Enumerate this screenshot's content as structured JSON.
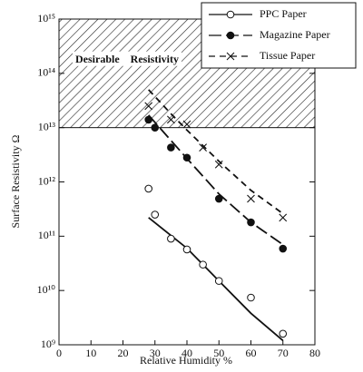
{
  "chart_data": {
    "type": "scatter",
    "x_label": "Relative Humidity  %",
    "y_label": "Surface Resistivity  Ω",
    "xlim": [
      0,
      80
    ],
    "xticks": [
      0,
      10,
      20,
      30,
      40,
      50,
      60,
      70,
      80
    ],
    "ylim": [
      1000000000,
      1000000000000000
    ],
    "yscale": "log",
    "yticks": [
      {
        "value": 1000000000,
        "label": "10⁹"
      },
      {
        "value": 10000000000,
        "label": "10¹⁰"
      },
      {
        "value": 100000000000,
        "label": "10¹¹"
      },
      {
        "value": 1000000000000,
        "label": "10¹²"
      },
      {
        "value": 10000000000000,
        "label": "10¹³"
      },
      {
        "value": 100000000000000,
        "label": "10¹⁴"
      },
      {
        "value": 1000000000000000,
        "label": "10¹⁵"
      }
    ],
    "region": {
      "label": "Desirable    Resistivity",
      "ylim": [
        10000000000000,
        1000000000000000
      ]
    },
    "legend": "upper right",
    "series": [
      {
        "name": "PPC Paper",
        "color": "#111111",
        "marker": "open-circle",
        "dash": "none",
        "x": [
          28,
          30,
          35,
          40,
          45,
          50,
          60,
          70
        ],
        "values": [
          750000000000,
          250000000000,
          90000000000,
          57000000000,
          30000000000,
          15000000000,
          7400000000,
          1600000000
        ],
        "fit": {
          "x": [
            28,
            40,
            50,
            60,
            70
          ],
          "values": [
            220000000000,
            60000000000,
            15000000000,
            3800000000,
            1200000000
          ]
        }
      },
      {
        "name": "Magazine Paper",
        "color": "#111111",
        "marker": "filled-circle",
        "dash": "14 5",
        "x": [
          28,
          30,
          35,
          40,
          50,
          60,
          70
        ],
        "values": [
          14000000000000,
          10000000000000,
          4300000000000,
          2800000000000,
          490000000000,
          180000000000,
          59000000000
        ],
        "fit": {
          "x": [
            28,
            35,
            40,
            50,
            60,
            70
          ],
          "values": [
            17000000000000,
            5800000000000,
            2700000000000,
            600000000000,
            180000000000,
            70000000000
          ]
        }
      },
      {
        "name": "Tissue Paper",
        "color": "#111111",
        "marker": "cross",
        "dash": "7 5",
        "x": [
          28,
          35,
          40,
          45,
          50,
          60,
          70
        ],
        "values": [
          25000000000000,
          14000000000000,
          11500000000000,
          4300000000000,
          2100000000000,
          490000000000,
          220000000000
        ],
        "fit": {
          "x": [
            28,
            35,
            40,
            50,
            60,
            70
          ],
          "values": [
            50000000000000,
            18000000000000,
            9000000000000,
            2400000000000,
            700000000000,
            260000000000
          ]
        }
      }
    ]
  }
}
